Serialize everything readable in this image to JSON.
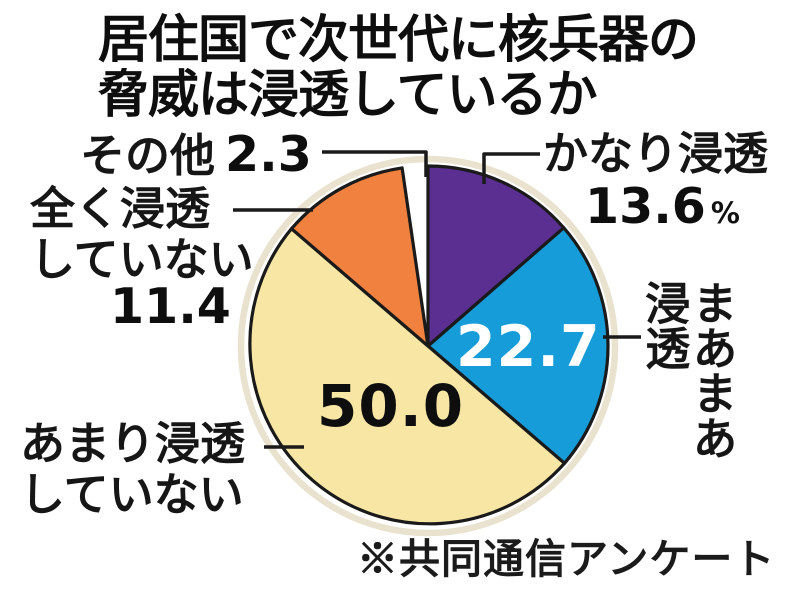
{
  "title": {
    "line1": "居住国で次世代に核兵器の",
    "line2": "脅威は浸透しているか"
  },
  "source_note": "※共同通信アンケート",
  "chart_data": {
    "type": "pie",
    "title": "居住国で次世代に核兵器の脅威は浸透しているか",
    "unit": "%",
    "start_angle": "12-oclock",
    "direction": "clockwise",
    "source": "共同通信アンケート",
    "total": 100.0,
    "slices": [
      {
        "label": "かなり浸透",
        "value": 13.6,
        "color": "#5b2e91"
      },
      {
        "label": "まあまあ浸透",
        "value": 22.7,
        "color": "#169cd8"
      },
      {
        "label": "あまり浸透していない",
        "value": 50.0,
        "color": "#f8e7a4"
      },
      {
        "label": "全く浸透していない",
        "value": 11.4,
        "color": "#f0813f"
      },
      {
        "label": "その他",
        "value": 2.3,
        "color": "#ffffff"
      }
    ],
    "colors": {
      "outline": "#1a1a1a",
      "halo_ring": "#e9e2cf",
      "value_on_blue": "#ffffff",
      "value_on_cream": "#0e0e0e"
    }
  },
  "callouts": {
    "other": {
      "label": "その他",
      "value": "2.3"
    },
    "kanari": {
      "label": "かなり浸透",
      "value": "13.6",
      "unit": "%"
    },
    "maamaa": {
      "line1": "まあまあ",
      "line2": "浸透",
      "value": "22.7"
    },
    "amari": {
      "line1": "あまり浸透",
      "line2": "していない",
      "value": "50.0"
    },
    "mattaku": {
      "line1": "全く浸透",
      "line2": "していない",
      "value": "11.4"
    }
  }
}
